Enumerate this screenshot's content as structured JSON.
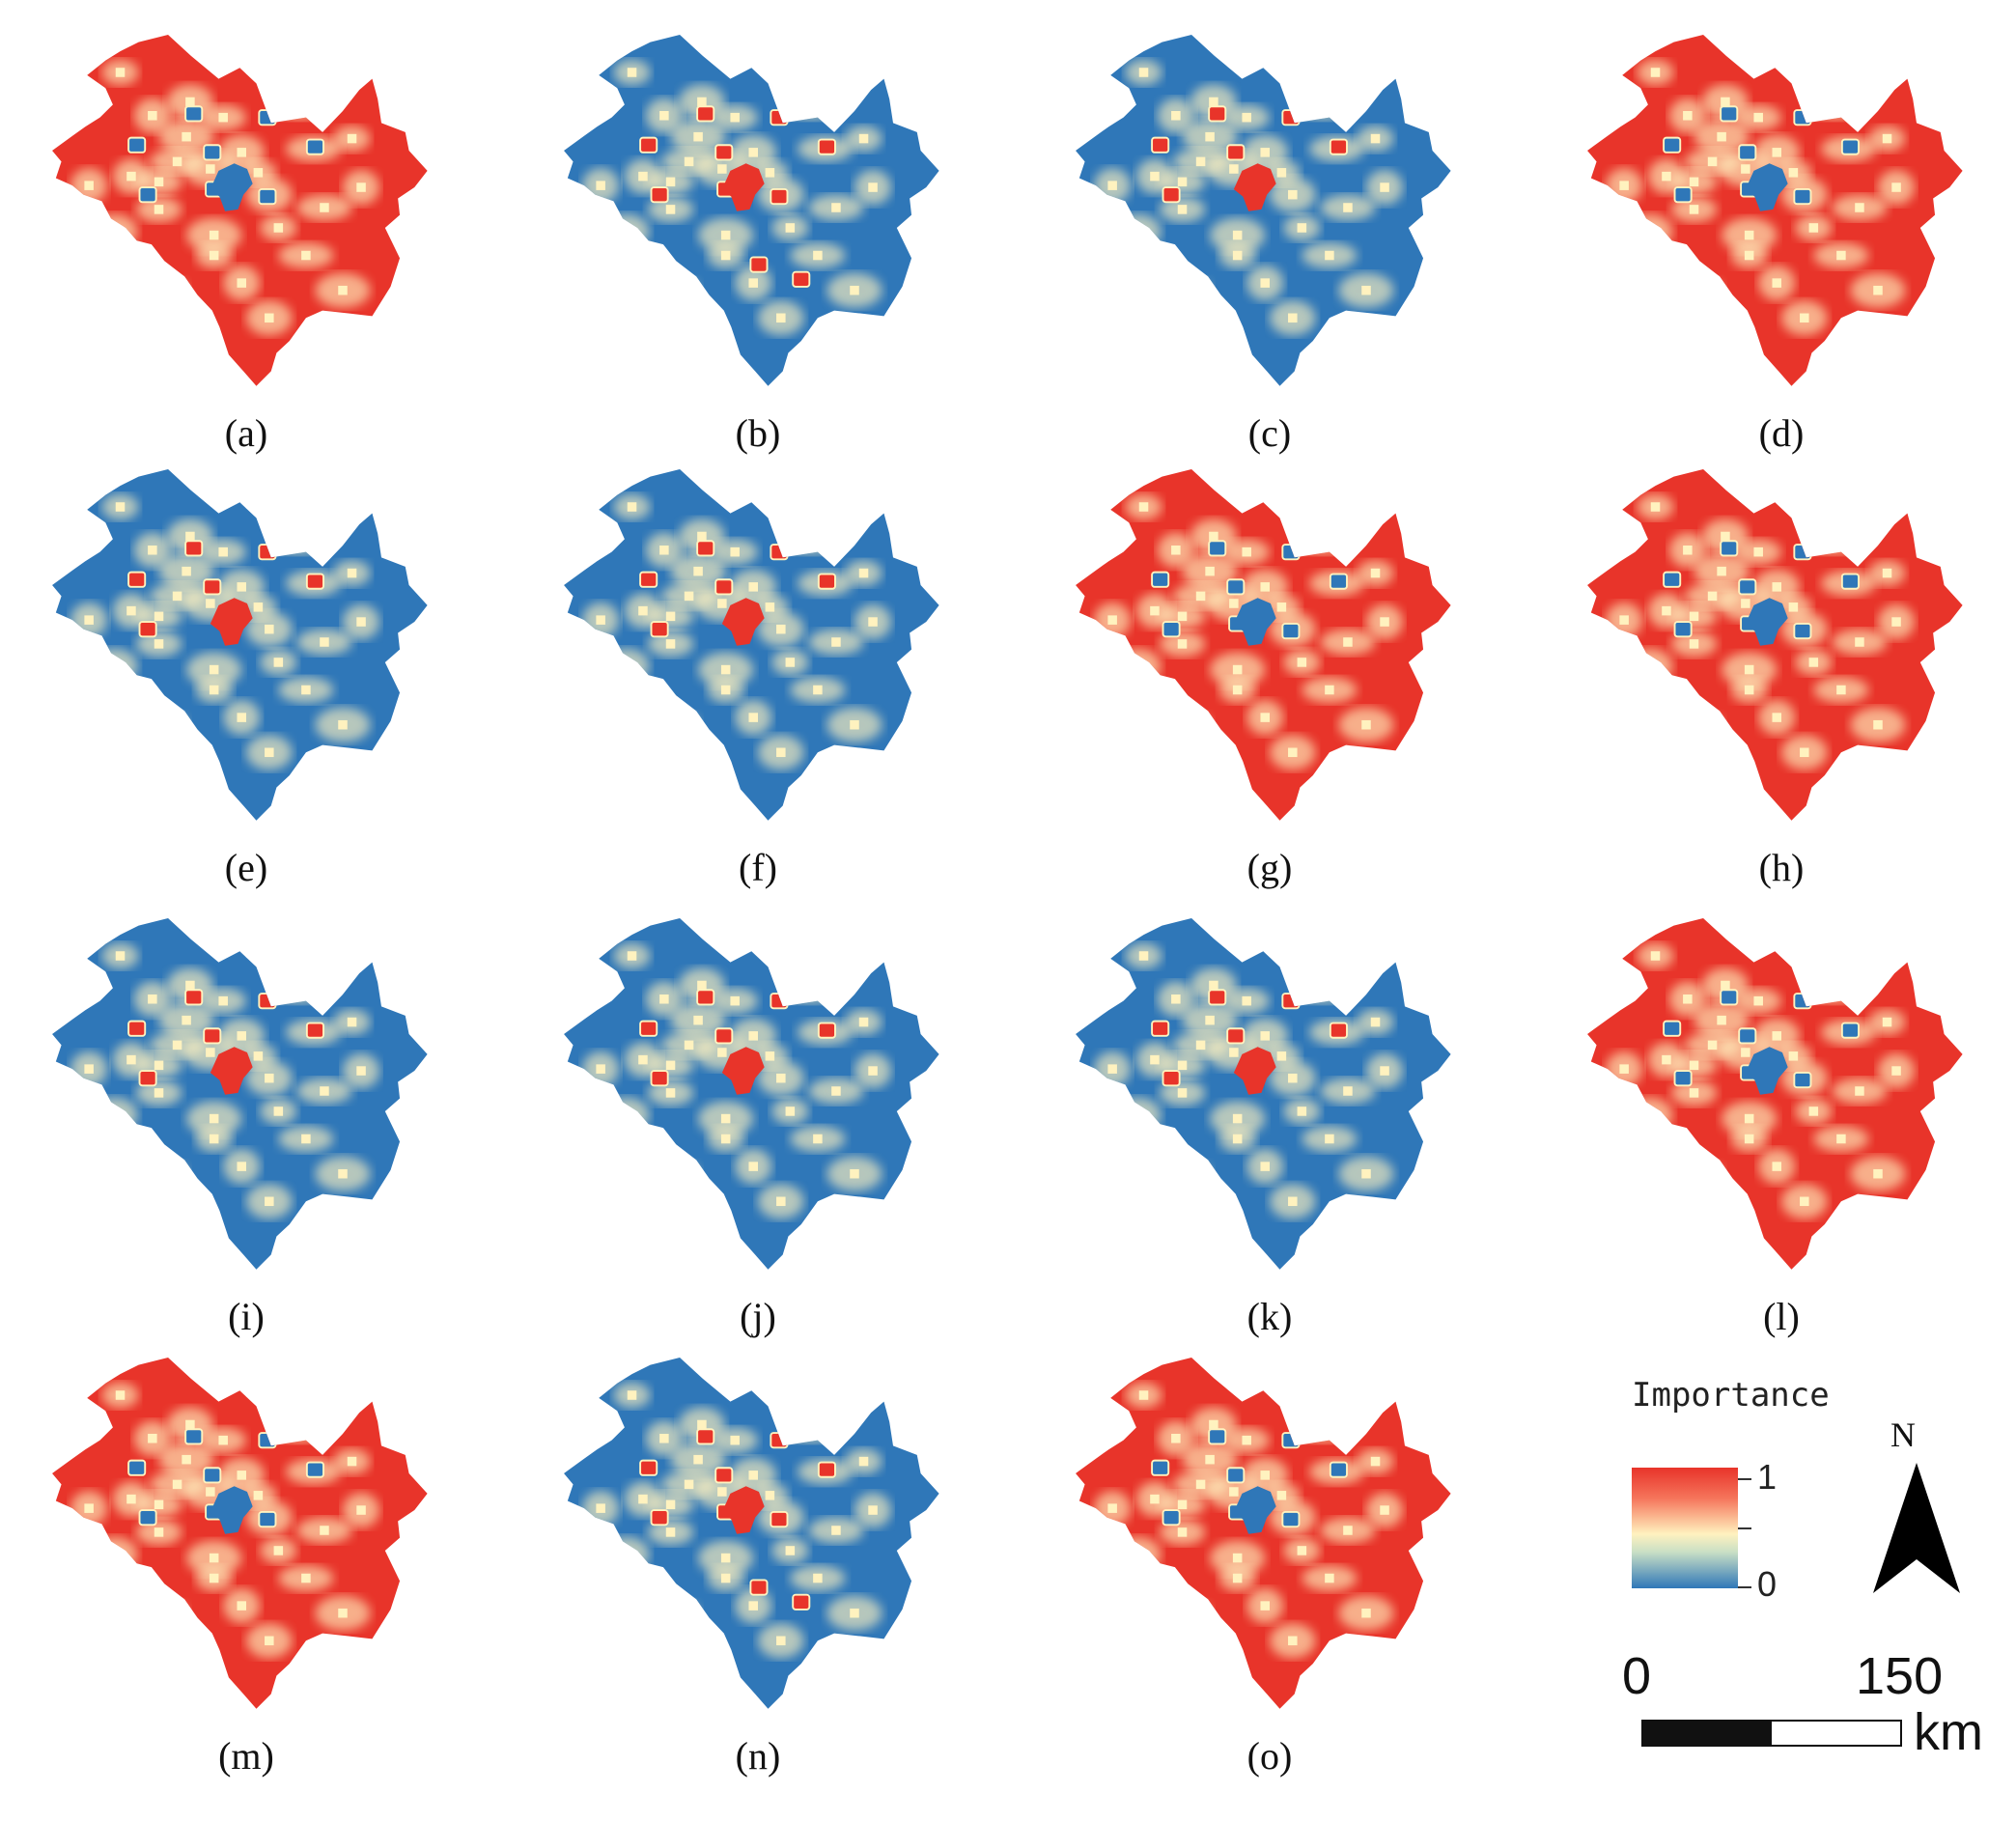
{
  "panels": [
    {
      "label": "(a)",
      "base": "red"
    },
    {
      "label": "(b)",
      "base": "blue"
    },
    {
      "label": "(c)",
      "base": "blue"
    },
    {
      "label": "(d)",
      "base": "red"
    },
    {
      "label": "(e)",
      "base": "blue"
    },
    {
      "label": "(f)",
      "base": "blue"
    },
    {
      "label": "(g)",
      "base": "red"
    },
    {
      "label": "(h)",
      "base": "red"
    },
    {
      "label": "(i)",
      "base": "blue"
    },
    {
      "label": "(j)",
      "base": "blue"
    },
    {
      "label": "(k)",
      "base": "blue"
    },
    {
      "label": "(l)",
      "base": "red"
    },
    {
      "label": "(m)",
      "base": "red"
    },
    {
      "label": "(n)",
      "base": "blue"
    },
    {
      "label": "(o)",
      "base": "red"
    }
  ],
  "legend": {
    "title": "Importance",
    "max_label": "1",
    "min_label": "0",
    "colors": {
      "high": "#e8342a",
      "mid": "#fff2bf",
      "low": "#2f77b8"
    }
  },
  "north": {
    "label": "N",
    "icon": "north-arrow-icon"
  },
  "scale": {
    "start": "0",
    "end": "150",
    "unit": "km"
  }
}
